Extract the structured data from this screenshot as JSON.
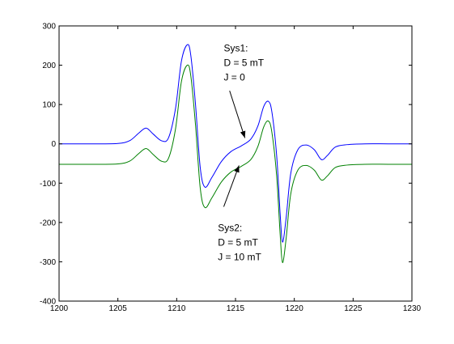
{
  "chart_data": {
    "type": "line",
    "xlim": [
      1200,
      1230
    ],
    "ylim": [
      -400,
      300
    ],
    "xticks": [
      1200,
      1205,
      1210,
      1215,
      1220,
      1225,
      1230
    ],
    "yticks": [
      300,
      200,
      100,
      0,
      -100,
      -200,
      -300,
      -400
    ],
    "grid": false,
    "legend": "none",
    "series": [
      {
        "color": "#0000ff",
        "x": [
          1200,
          1203,
          1205,
          1206,
          1206.8,
          1207.4,
          1208,
          1208.7,
          1209.3,
          1209.9,
          1210.4,
          1210.9,
          1211.2,
          1211.6,
          1212.0,
          1212.4,
          1213.0,
          1213.8,
          1214.6,
          1215.5,
          1216.3,
          1216.9,
          1217.4,
          1217.8,
          1218.1,
          1218.5,
          1218.8,
          1219.0,
          1219.3,
          1219.7,
          1220.3,
          1221.0,
          1221.7,
          1222.3,
          1222.8,
          1223.5,
          1224.5,
          1226,
          1228,
          1230
        ],
        "y": [
          0,
          0,
          1,
          8,
          28,
          40,
          25,
          8,
          15,
          90,
          210,
          252,
          225,
          100,
          -60,
          -110,
          -85,
          -45,
          -20,
          -5,
          12,
          45,
          95,
          108,
          80,
          -30,
          -180,
          -250,
          -190,
          -75,
          -15,
          -3,
          -15,
          -40,
          -30,
          -8,
          -2,
          0,
          0,
          0
        ]
      },
      {
        "color": "#008000",
        "x": [
          1200,
          1203,
          1205,
          1206,
          1206.8,
          1207.4,
          1208,
          1208.7,
          1209.3,
          1209.9,
          1210.4,
          1210.9,
          1211.2,
          1211.6,
          1212.0,
          1212.4,
          1213.0,
          1213.8,
          1214.6,
          1215.5,
          1216.3,
          1216.9,
          1217.4,
          1217.8,
          1218.1,
          1218.5,
          1218.8,
          1219.0,
          1219.3,
          1219.7,
          1220.3,
          1221.0,
          1221.7,
          1222.3,
          1222.8,
          1223.5,
          1224.5,
          1226,
          1228,
          1230
        ],
        "y": [
          -52,
          -52,
          -51,
          -44,
          -24,
          -12,
          -27,
          -44,
          -37,
          38,
          158,
          200,
          173,
          48,
          -112,
          -162,
          -137,
          -97,
          -72,
          -57,
          -40,
          -7,
          43,
          58,
          28,
          -82,
          -232,
          -302,
          -242,
          -127,
          -67,
          -55,
          -67,
          -92,
          -82,
          -60,
          -54,
          -52,
          -52,
          -52
        ]
      }
    ],
    "annotations": [
      {
        "lines": [
          "Sys1:",
          "D = 5 mT",
          "J = 0"
        ],
        "text_x": 1214,
        "text_y": 235,
        "arrow_from": [
          1214.5,
          135
        ],
        "arrow_to": [
          1215.8,
          15
        ]
      },
      {
        "lines": [
          "Sys2:",
          "D = 5 mT",
          "J = 10 mT"
        ],
        "text_x": 1213.5,
        "text_y": -222,
        "arrow_from": [
          1214,
          -160
        ],
        "arrow_to": [
          1215.3,
          -55
        ]
      }
    ]
  }
}
